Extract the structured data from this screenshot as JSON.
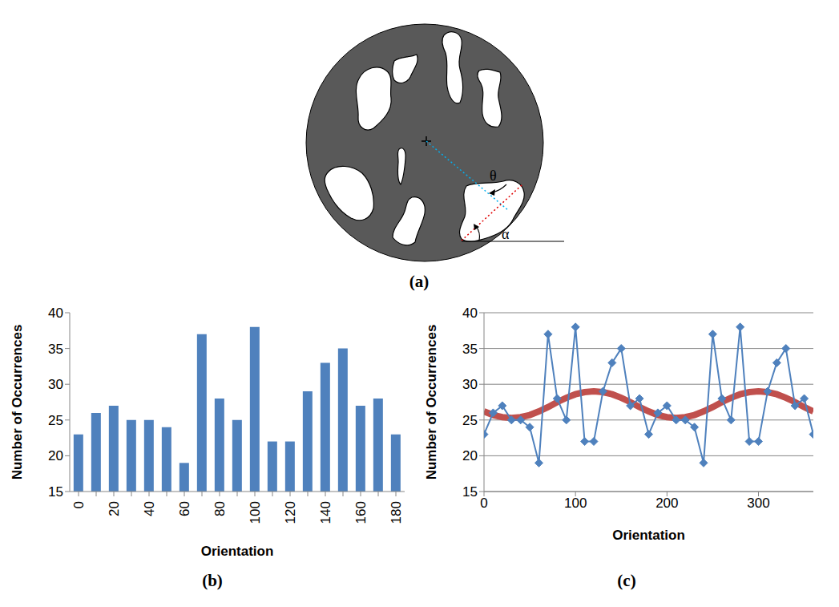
{
  "diagram": {
    "label": "(a)",
    "angle_labels": [
      "θ",
      "α"
    ]
  },
  "chart_data": [
    {
      "type": "bar",
      "title": "(b)",
      "x_label": "Orientation",
      "y_label": "Number of Occurrences",
      "categories": [
        "0",
        null,
        "20",
        null,
        "40",
        null,
        "60",
        null,
        "80",
        null,
        "100",
        null,
        "120",
        null,
        "140",
        null,
        "160",
        null,
        "180"
      ],
      "values": [
        23,
        26,
        27,
        25,
        25,
        24,
        19,
        37,
        28,
        25,
        38,
        22,
        22,
        29,
        33,
        35,
        27,
        28,
        23
      ],
      "color": "#4f81bd",
      "ylim": [
        15,
        40
      ],
      "yticks": [
        15,
        20,
        25,
        30,
        35,
        40
      ],
      "grid": false
    },
    {
      "type": "line",
      "title": "(c)",
      "x_label": "Orientation",
      "y_label": "Number of Occurrences",
      "x": [
        0,
        10,
        20,
        30,
        40,
        50,
        60,
        70,
        80,
        90,
        100,
        110,
        120,
        130,
        140,
        150,
        160,
        170,
        180,
        190,
        200,
        210,
        220,
        230,
        240,
        250,
        260,
        270,
        280,
        290,
        300,
        310,
        320,
        330,
        340,
        350,
        360
      ],
      "series": [
        {
          "color": "#c0504d",
          "marker": "none",
          "values": [
            26.2,
            25.7,
            25.4,
            25.3,
            25.4,
            25.7,
            26.2,
            26.8,
            27.5,
            28.1,
            28.6,
            28.9,
            29.0,
            28.9,
            28.6,
            28.1,
            27.5,
            26.8,
            26.2,
            25.7,
            25.4,
            25.3,
            25.4,
            25.7,
            26.2,
            26.8,
            27.5,
            28.1,
            28.6,
            28.9,
            29.0,
            28.9,
            28.6,
            28.1,
            27.5,
            26.8,
            26.2
          ]
        },
        {
          "color": "#4f81bd",
          "marker": "diamond",
          "values": [
            23,
            26,
            27,
            25,
            25,
            24,
            19,
            37,
            28,
            25,
            38,
            22,
            22,
            29,
            33,
            35,
            27,
            28,
            23,
            26,
            27,
            25,
            25,
            24,
            19,
            37,
            28,
            25,
            38,
            22,
            22,
            29,
            33,
            35,
            27,
            28,
            23
          ]
        }
      ],
      "xlim": [
        0,
        360
      ],
      "xticks": [
        0,
        100,
        200,
        300
      ],
      "ylim": [
        15,
        40
      ],
      "yticks": [
        15,
        20,
        25,
        30,
        35,
        40
      ],
      "grid": true
    }
  ]
}
